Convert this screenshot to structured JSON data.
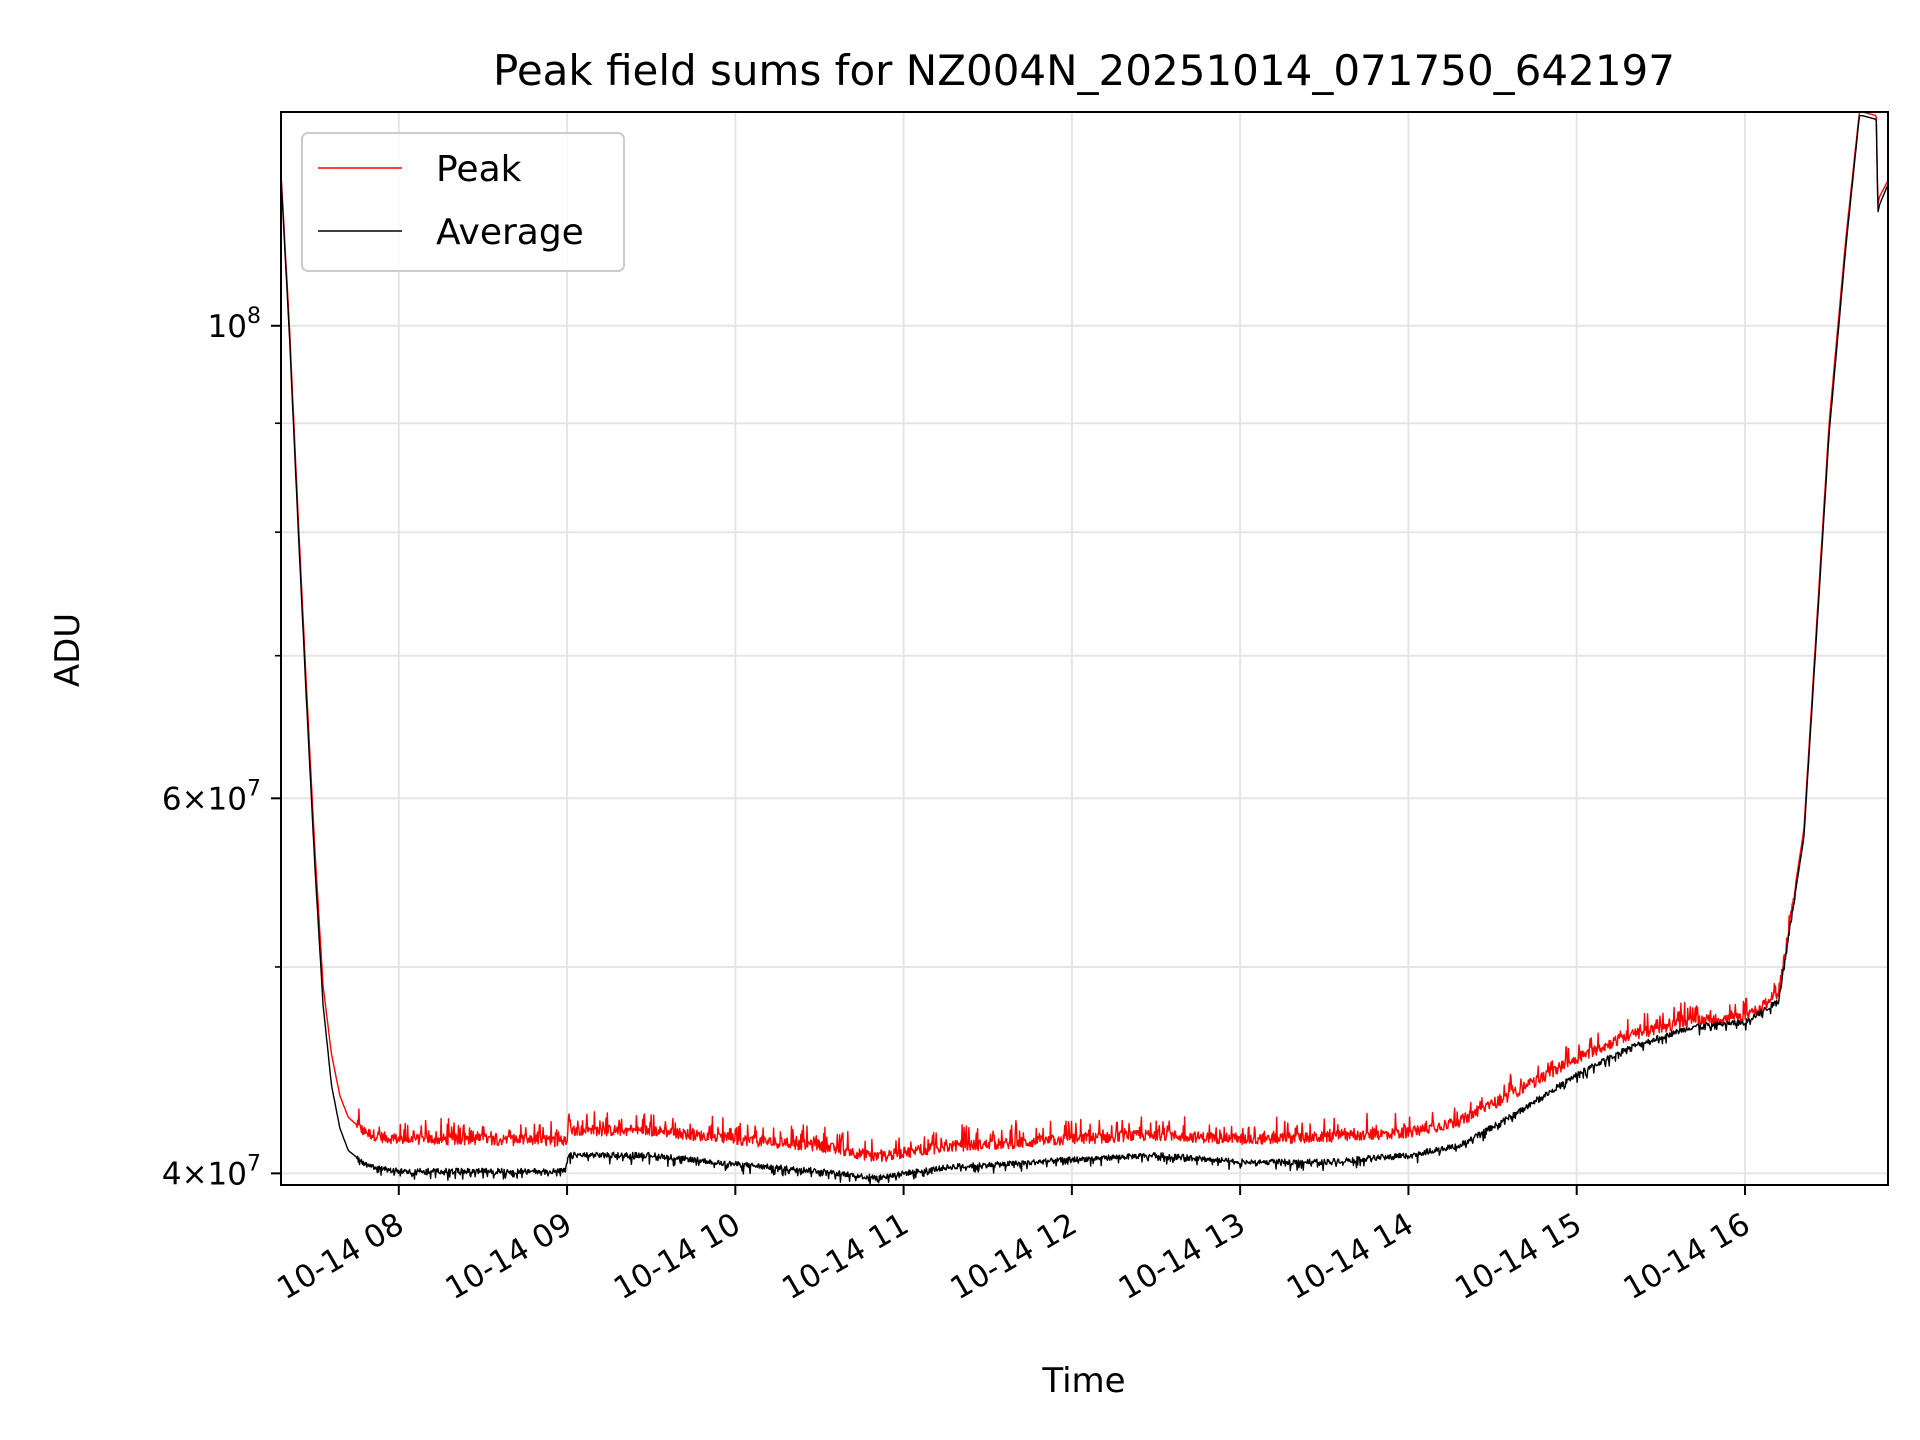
{
  "chart_data": {
    "type": "line",
    "title": "Peak field sums for NZ004N_20251014_071750_642197",
    "xlabel": "Time",
    "ylabel": "ADU",
    "yscale": "log",
    "ylim": [
      39500000,
      126000000
    ],
    "xlim_hours": [
      7.3,
      16.85
    ],
    "grid": true,
    "legend_position": "top-left",
    "x_ticks": [
      {
        "value": 8,
        "label": "10-14 08"
      },
      {
        "value": 9,
        "label": "10-14 09"
      },
      {
        "value": 10,
        "label": "10-14 10"
      },
      {
        "value": 11,
        "label": "10-14 11"
      },
      {
        "value": 12,
        "label": "10-14 12"
      },
      {
        "value": 13,
        "label": "10-14 13"
      },
      {
        "value": 14,
        "label": "10-14 14"
      },
      {
        "value": 15,
        "label": "10-14 15"
      },
      {
        "value": 16,
        "label": "10-14 16"
      }
    ],
    "y_ticks": [
      {
        "value": 40000000,
        "mant": "4",
        "exp": "7"
      },
      {
        "value": 60000000,
        "mant": "6",
        "exp": "7"
      },
      {
        "value": 100000000,
        "mant": "",
        "exp": "8"
      }
    ],
    "y_minor_ticks": [
      50000000,
      70000000,
      80000000,
      90000000
    ],
    "series": [
      {
        "name": "Peak",
        "color": "#ff0000",
        "x": [
          7.3,
          7.35,
          7.4,
          7.45,
          7.5,
          7.55,
          7.6,
          7.65,
          7.7,
          7.8,
          7.9,
          8.0,
          8.5,
          8.99,
          9.01,
          9.5,
          10.0,
          10.5,
          10.85,
          11.0,
          11.3,
          11.6,
          12.0,
          12.5,
          13.0,
          13.5,
          14.0,
          14.3,
          14.6,
          15.0,
          15.3,
          15.7,
          16.0,
          16.2,
          16.35,
          16.5,
          16.6,
          16.68,
          16.7,
          16.78,
          16.79,
          16.8,
          16.85
        ],
        "values": [
          118000000,
          100000000,
          82000000,
          68000000,
          57000000,
          49000000,
          45500000,
          43500000,
          42500000,
          41800000,
          41600000,
          41500000,
          41500000,
          41400000,
          41900000,
          41900000,
          41500000,
          41200000,
          40700000,
          40900000,
          41200000,
          41300000,
          41500000,
          41700000,
          41500000,
          41600000,
          41800000,
          42300000,
          43500000,
          45300000,
          46400000,
          47200000,
          47300000,
          48500000,
          58000000,
          90000000,
          110000000,
          126000000,
          126000000,
          125500000,
          114000000,
          115000000,
          117000000
        ]
      },
      {
        "name": "Average",
        "color": "#000000",
        "x": [
          7.3,
          7.35,
          7.4,
          7.45,
          7.5,
          7.55,
          7.6,
          7.65,
          7.7,
          7.8,
          7.9,
          8.0,
          8.5,
          8.99,
          9.01,
          9.5,
          10.0,
          10.5,
          10.85,
          11.0,
          11.3,
          11.6,
          12.0,
          12.5,
          13.0,
          13.5,
          14.0,
          14.3,
          14.6,
          15.0,
          15.3,
          15.7,
          16.0,
          16.2,
          16.35,
          16.5,
          16.6,
          16.68,
          16.7,
          16.78,
          16.79,
          16.8,
          16.85
        ],
        "values": [
          117500000,
          99000000,
          81000000,
          67000000,
          56000000,
          48000000,
          44000000,
          42000000,
          41000000,
          40400000,
          40200000,
          40100000,
          40100000,
          40100000,
          40800000,
          40800000,
          40400000,
          40100000,
          39800000,
          40000000,
          40300000,
          40400000,
          40600000,
          40800000,
          40500000,
          40500000,
          40800000,
          41200000,
          42500000,
          44500000,
          45800000,
          46900000,
          47100000,
          48200000,
          57500000,
          89000000,
          109000000,
          125500000,
          125500000,
          125000000,
          113000000,
          114000000,
          116500000
        ]
      }
    ]
  }
}
